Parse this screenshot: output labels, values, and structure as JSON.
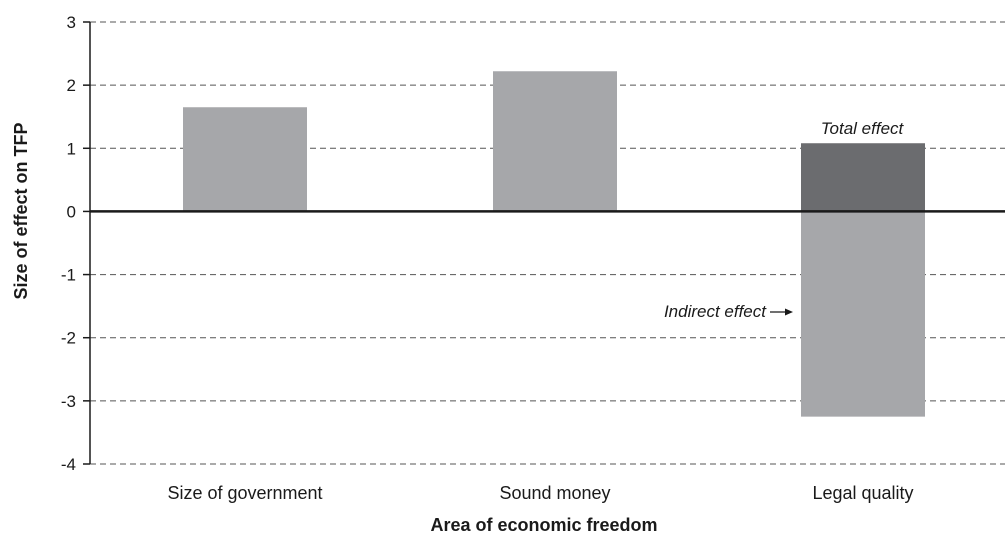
{
  "chart_data": {
    "type": "bar",
    "title": "",
    "xlabel": "Area of economic freedom",
    "ylabel": "Size of effect on TFP",
    "ylim": [
      -4,
      3
    ],
    "yticks": [
      "3",
      "2",
      "1",
      "0",
      "-1",
      "-2",
      "-3",
      "-4"
    ],
    "grid": true,
    "categories": [
      "Size of government",
      "Sound money",
      "Legal quality"
    ],
    "series": [
      {
        "values": [
          1.65,
          2.22,
          null
        ],
        "color": "#a6a7aa"
      },
      {
        "values": [
          null,
          null,
          1.08
        ],
        "color": "#6b6c6f"
      },
      {
        "values": [
          null,
          null,
          -3.25
        ],
        "color": "#a6a7aa"
      }
    ],
    "annotations": {
      "total": "Total effect",
      "indirect": "Indirect effect"
    }
  }
}
